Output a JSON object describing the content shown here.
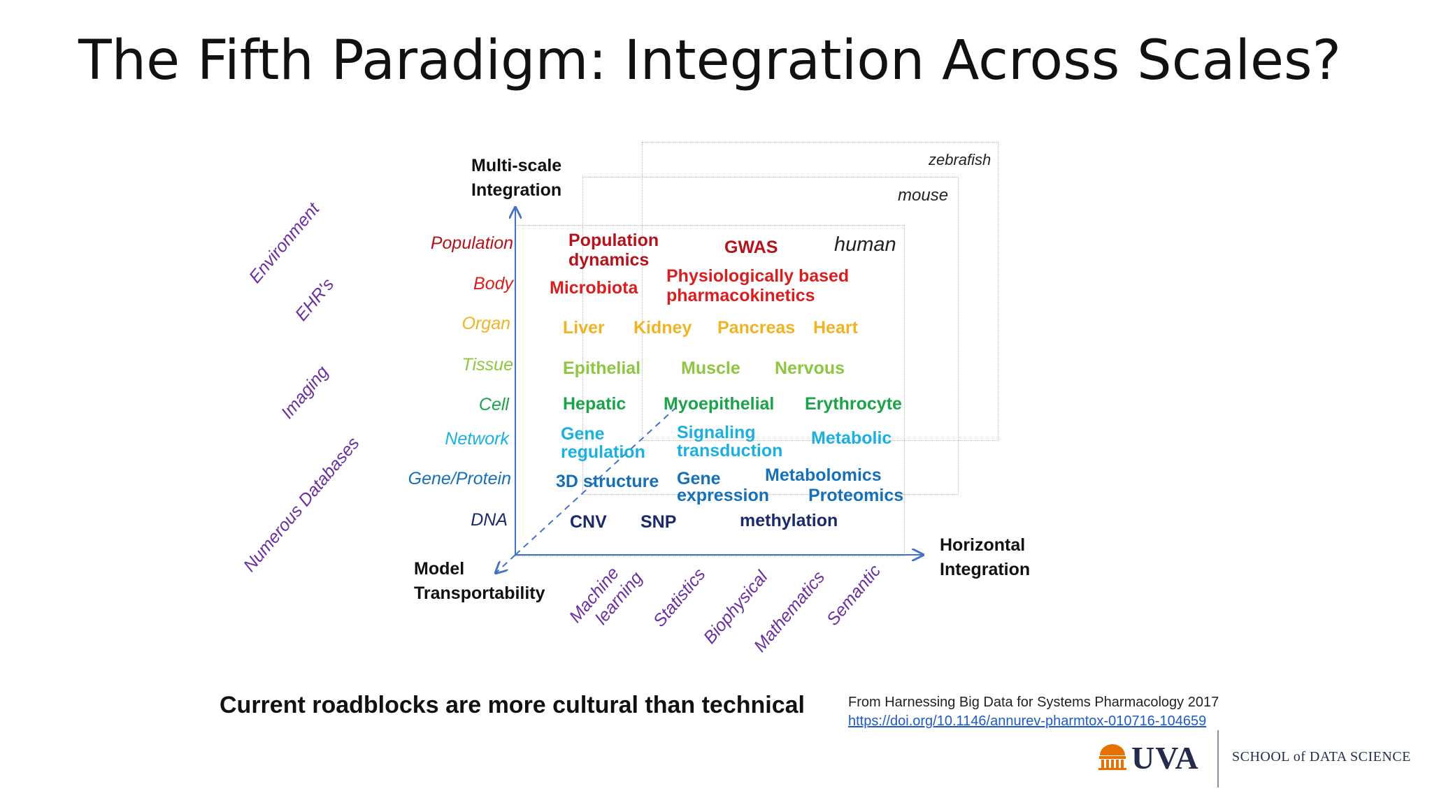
{
  "title": "The Fifth Paradigm: Integration Across Scales?",
  "species": {
    "zebrafish": "zebrafish",
    "mouse": "mouse",
    "human": "human"
  },
  "axes": {
    "vertical": "Multi-scale Integration",
    "horizontal": "Horizontal Integration",
    "depth": "Model Transportability"
  },
  "levels": [
    {
      "label": "Population",
      "color": "#b5121b"
    },
    {
      "label": "Body",
      "color": "#d81e1e"
    },
    {
      "label": "Organ",
      "color": "#f0b323"
    },
    {
      "label": "Tissue",
      "color": "#8dc63f"
    },
    {
      "label": "Cell",
      "color": "#1aa34a"
    },
    {
      "label": "Network",
      "color": "#1ab0e0"
    },
    {
      "label": "Gene/Protein",
      "color": "#1570b8"
    },
    {
      "label": "DNA",
      "color": "#1b2a6b"
    }
  ],
  "cells": {
    "population_dynamics": "Population dynamics",
    "gwas": "GWAS",
    "microbiota": "Microbiota",
    "pbpk": "Physiologically based pharmacokinetics",
    "liver": "Liver",
    "kidney": "Kidney",
    "pancreas": "Pancreas",
    "heart": "Heart",
    "epithelial": "Epithelial",
    "muscle": "Muscle",
    "nervous": "Nervous",
    "hepatic": "Hepatic",
    "myoepithelial": "Myoepithelial",
    "erythrocyte": "Erythrocyte",
    "gene_regulation": "Gene regulation",
    "signaling": "Signaling transduction",
    "metabolic": "Metabolic",
    "structure_3d": "3D structure",
    "gene_expression": "Gene expression",
    "metabolomics": "Metabolomics",
    "proteomics": "Proteomics",
    "cnv": "CNV",
    "snp": "SNP",
    "methylation": "methylation"
  },
  "data_sources": [
    "Environment",
    "EHR's",
    "Imaging",
    "Numerous Databases"
  ],
  "methods": [
    {
      "line1": "Machine",
      "line2": "learning"
    },
    {
      "line1": "Statistics"
    },
    {
      "line1": "Biophysical"
    },
    {
      "line1": "Mathematics"
    },
    {
      "line1": "Semantic"
    }
  ],
  "footnote": "Current roadblocks are more cultural than technical",
  "citation": {
    "text": "From Harnessing Big Data for Systems Pharmacology 2017",
    "link": "https://doi.org/10.1146/annurev-pharmtox-010716-104659"
  },
  "logo": {
    "word": "UVA",
    "school": "SCHOOL of DATA SCIENCE"
  },
  "colors": {
    "axis": "#4472c4",
    "accent_purple": "#6b2fa0",
    "uva_orange": "#e57200",
    "uva_navy": "#232d4b"
  }
}
